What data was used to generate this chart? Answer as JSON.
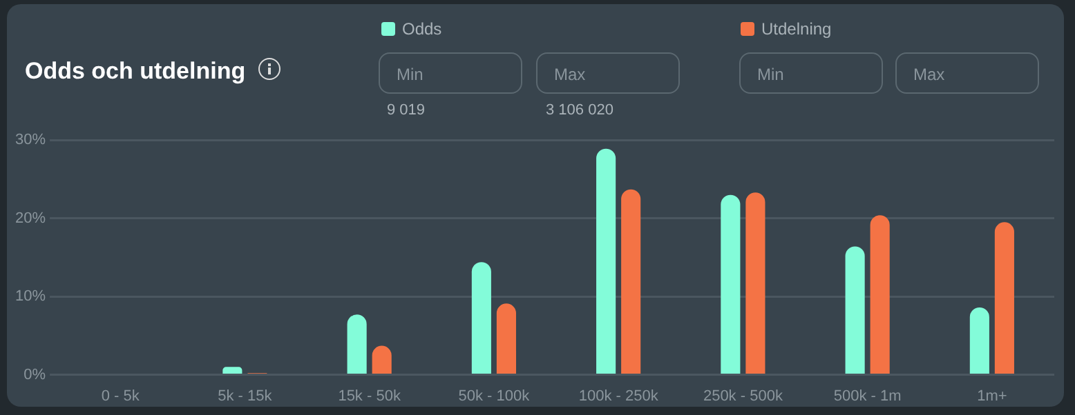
{
  "chart_data": {
    "type": "bar",
    "title": "Odds och utdelning",
    "categories": [
      "0 - 5k",
      "5k - 15k",
      "15k - 50k",
      "50k - 100k",
      "100k - 250k",
      "250k - 500k",
      "500k - 1m",
      "1m+"
    ],
    "series": [
      {
        "name": "Odds",
        "color": "#83fcd9",
        "values": [
          0,
          1.0,
          7.7,
          14.4,
          28.9,
          23.0,
          16.4,
          8.6
        ]
      },
      {
        "name": "Utdelning",
        "color": "#f47345",
        "values": [
          0,
          0.2,
          3.7,
          9.1,
          23.7,
          23.3,
          20.4,
          19.5
        ]
      }
    ],
    "ylim": [
      0,
      30
    ],
    "yticks": [
      {
        "value": 0,
        "label": "0%"
      },
      {
        "value": 10,
        "label": "10%"
      },
      {
        "value": 20,
        "label": "20%"
      },
      {
        "value": 30,
        "label": "30%"
      }
    ],
    "grid": "y",
    "legend": "top",
    "annotations": [
      "Min",
      "Max",
      "Min",
      "Max",
      "9 019",
      "3 106 020"
    ]
  }
}
